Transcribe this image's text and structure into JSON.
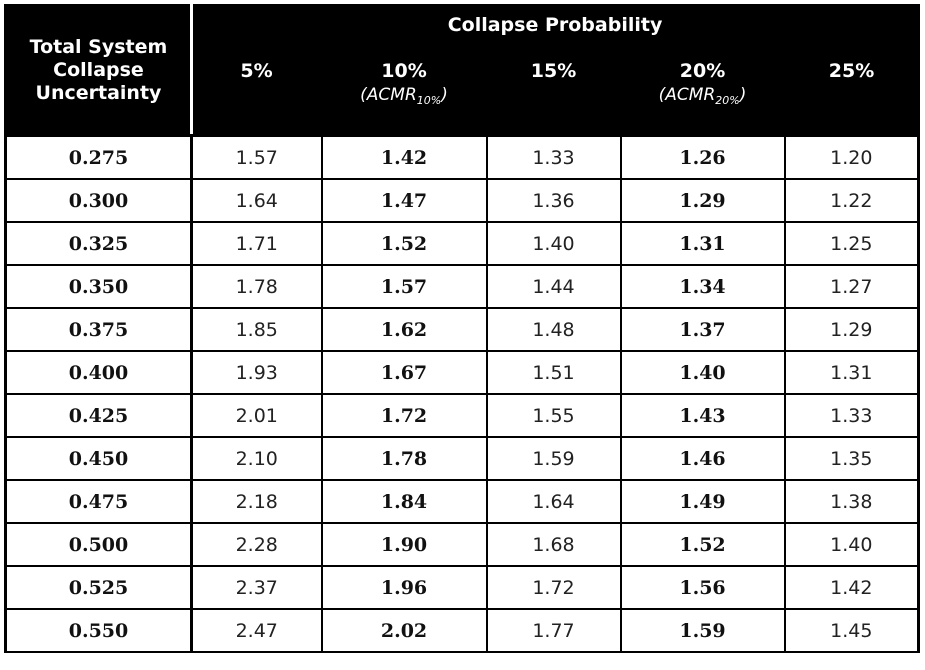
{
  "table": {
    "corner_header": "Total System Collapse Uncertainty",
    "group_header": "Collapse Probability",
    "columns": [
      {
        "label": "5%",
        "note": "",
        "note_sub": ""
      },
      {
        "label": "10%",
        "note": "ACMR",
        "note_sub": "10%"
      },
      {
        "label": "15%",
        "note": "",
        "note_sub": ""
      },
      {
        "label": "20%",
        "note": "ACMR",
        "note_sub": "20%"
      },
      {
        "label": "25%",
        "note": "",
        "note_sub": ""
      }
    ],
    "rows": [
      {
        "uncertainty": "0.275",
        "values": [
          "1.57",
          "1.42",
          "1.33",
          "1.26",
          "1.20"
        ]
      },
      {
        "uncertainty": "0.300",
        "values": [
          "1.64",
          "1.47",
          "1.36",
          "1.29",
          "1.22"
        ]
      },
      {
        "uncertainty": "0.325",
        "values": [
          "1.71",
          "1.52",
          "1.40",
          "1.31",
          "1.25"
        ]
      },
      {
        "uncertainty": "0.350",
        "values": [
          "1.78",
          "1.57",
          "1.44",
          "1.34",
          "1.27"
        ]
      },
      {
        "uncertainty": "0.375",
        "values": [
          "1.85",
          "1.62",
          "1.48",
          "1.37",
          "1.29"
        ]
      },
      {
        "uncertainty": "0.400",
        "values": [
          "1.93",
          "1.67",
          "1.51",
          "1.40",
          "1.31"
        ]
      },
      {
        "uncertainty": "0.425",
        "values": [
          "2.01",
          "1.72",
          "1.55",
          "1.43",
          "1.33"
        ]
      },
      {
        "uncertainty": "0.450",
        "values": [
          "2.10",
          "1.78",
          "1.59",
          "1.46",
          "1.35"
        ]
      },
      {
        "uncertainty": "0.475",
        "values": [
          "2.18",
          "1.84",
          "1.64",
          "1.49",
          "1.38"
        ]
      },
      {
        "uncertainty": "0.500",
        "values": [
          "2.28",
          "1.90",
          "1.68",
          "1.52",
          "1.40"
        ]
      },
      {
        "uncertainty": "0.525",
        "values": [
          "2.37",
          "1.96",
          "1.72",
          "1.56",
          "1.42"
        ]
      },
      {
        "uncertainty": "0.550",
        "values": [
          "2.47",
          "2.02",
          "1.77",
          "1.59",
          "1.45"
        ]
      }
    ],
    "bold_columns": [
      1,
      3
    ],
    "colors": {
      "header_bg": "#000000",
      "header_text": "#ffffff",
      "rule": "#000000"
    }
  }
}
